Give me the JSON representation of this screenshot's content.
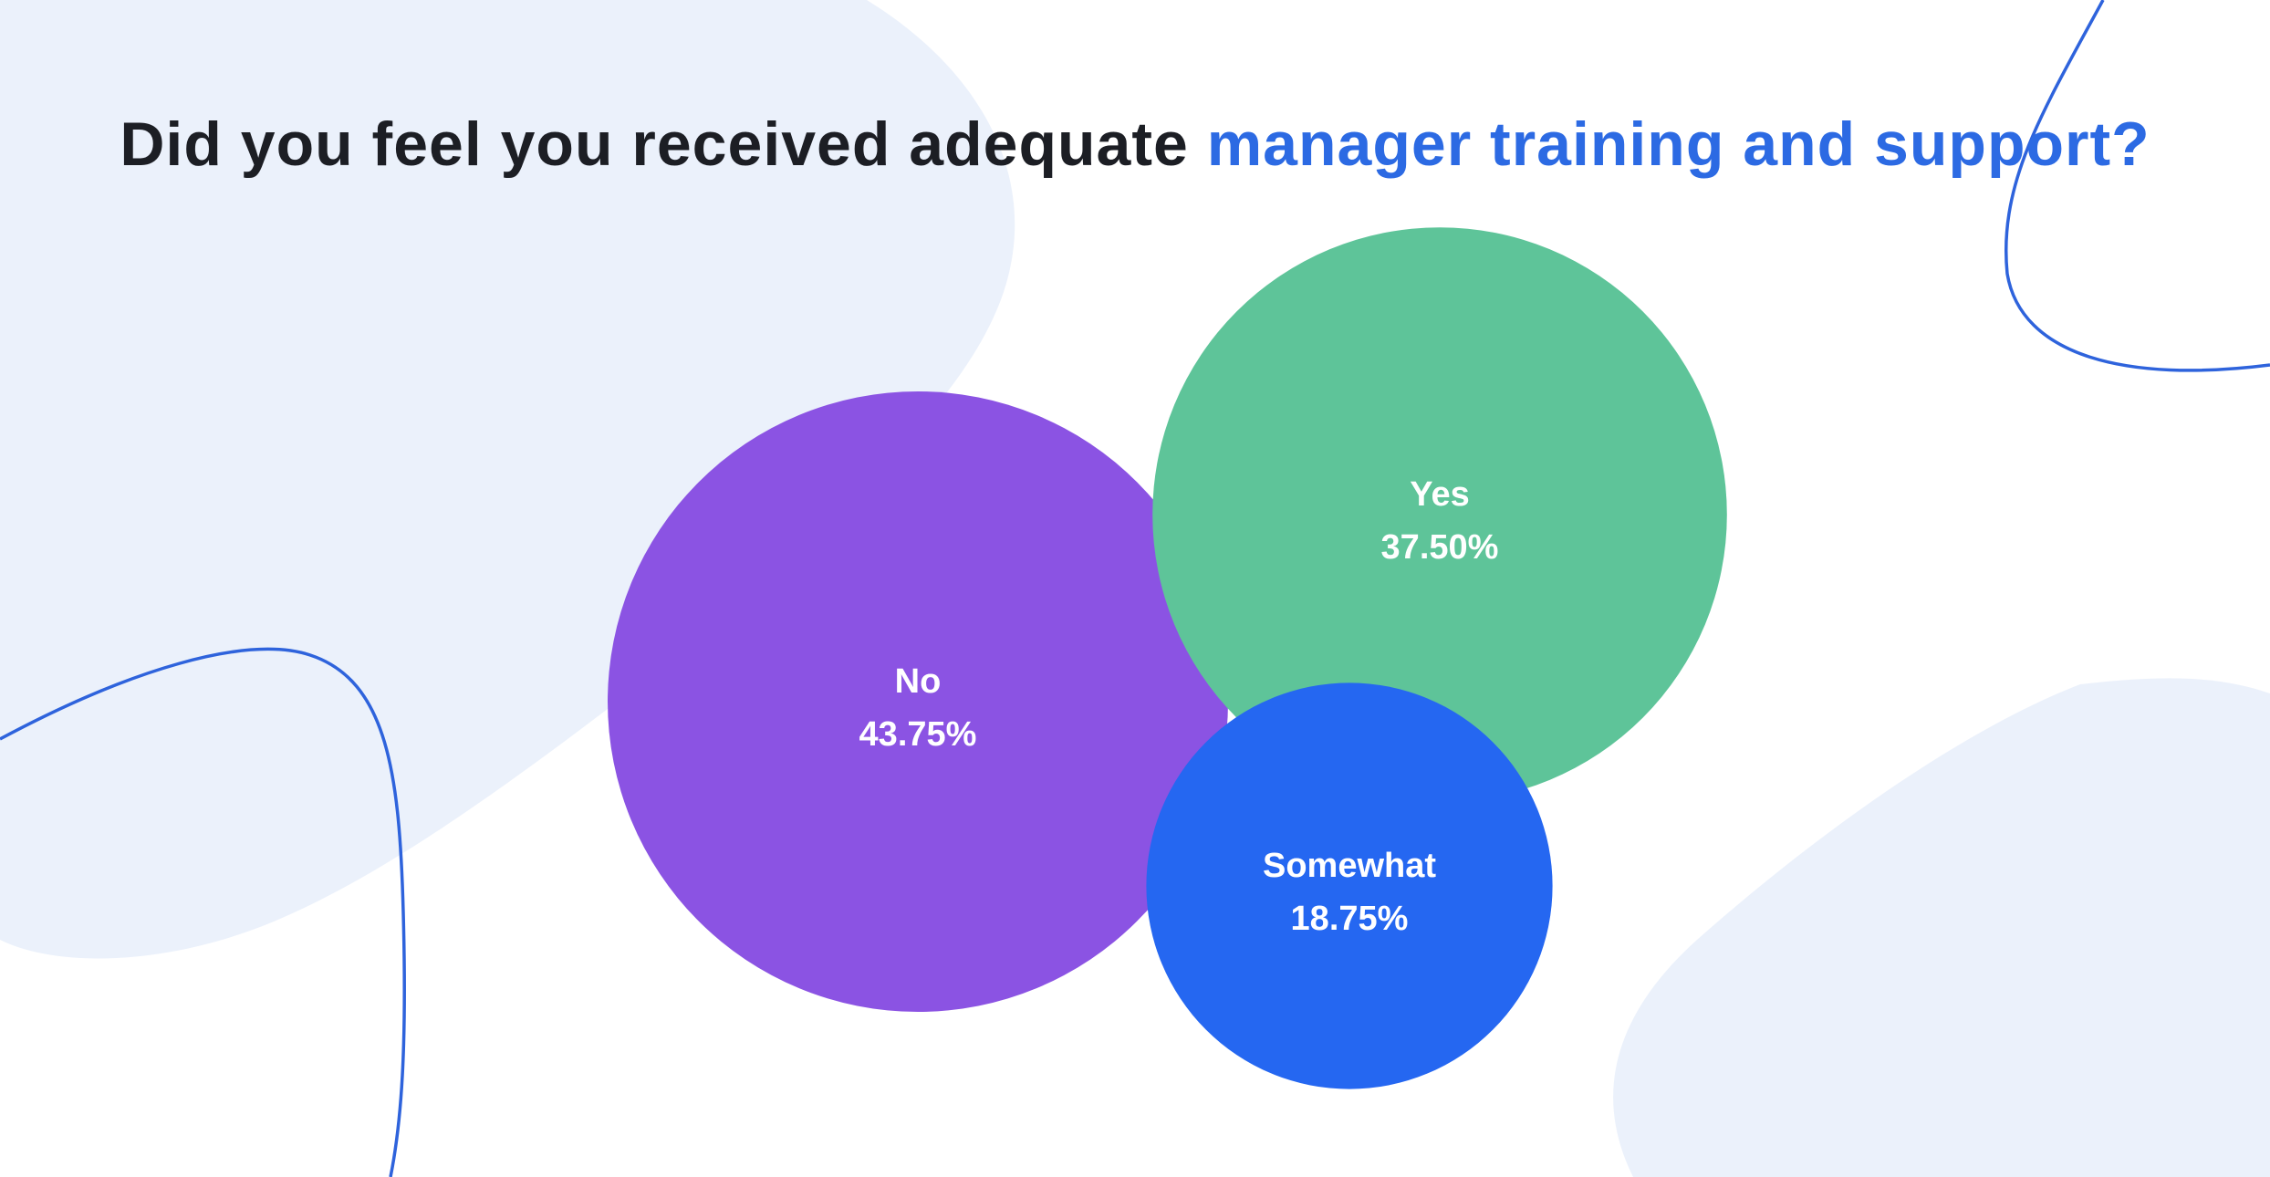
{
  "title": {
    "prefix": "Did you feel you received adequate ",
    "highlight": "manager training and support?"
  },
  "colors": {
    "title_text": "#1c1e24",
    "title_highlight": "#2c6ae3",
    "background_blob": "#ebf1fb",
    "decor_line": "#2e63dc"
  },
  "chart_data": {
    "type": "bubble",
    "title": "Did you feel you received adequate manager training and support?",
    "unit": "%",
    "series": [
      {
        "label": "No",
        "value": 43.75,
        "display": "43.75%",
        "color": "#8b53e3"
      },
      {
        "label": "Yes",
        "value": 37.5,
        "display": "37.50%",
        "color": "#5ec499"
      },
      {
        "label": "Somewhat",
        "value": 18.75,
        "display": "18.75%",
        "color": "#2567f1"
      }
    ]
  }
}
